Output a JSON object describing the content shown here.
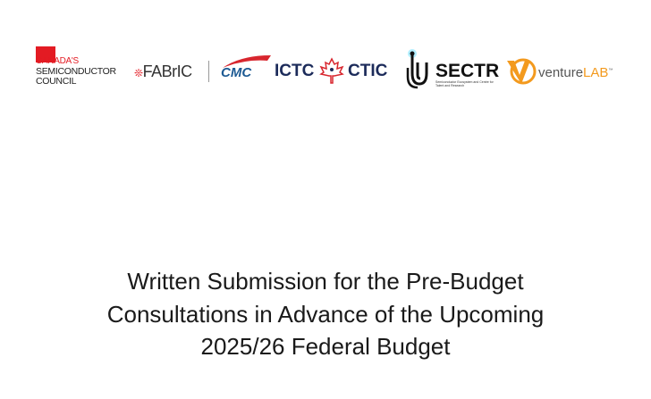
{
  "logos": {
    "csc": {
      "line1": "CANADA'S",
      "line2": "SEMICONDUCTOR",
      "line3": "COUNCIL",
      "color": "#e31b23"
    },
    "fabric": {
      "text": "FABrIC"
    },
    "cmc": {
      "text": "CMC",
      "color": "#1d5a93"
    },
    "ictc": {
      "left": "ICTC",
      "right": "CTIC",
      "color": "#1c2b5a"
    },
    "sectr": {
      "text": "SECTR",
      "subtitle": "Semiconductor Ecosystem and Centre for Talent and Research"
    },
    "venturelab": {
      "text1": "venture",
      "text2": "LAB",
      "tm": "™",
      "color": "#f39a1e"
    }
  },
  "title": {
    "lines": [
      "Written Submission for the Pre-Budget",
      "Consultations in Advance of the Upcoming",
      "2025/26 Federal Budget"
    ]
  }
}
